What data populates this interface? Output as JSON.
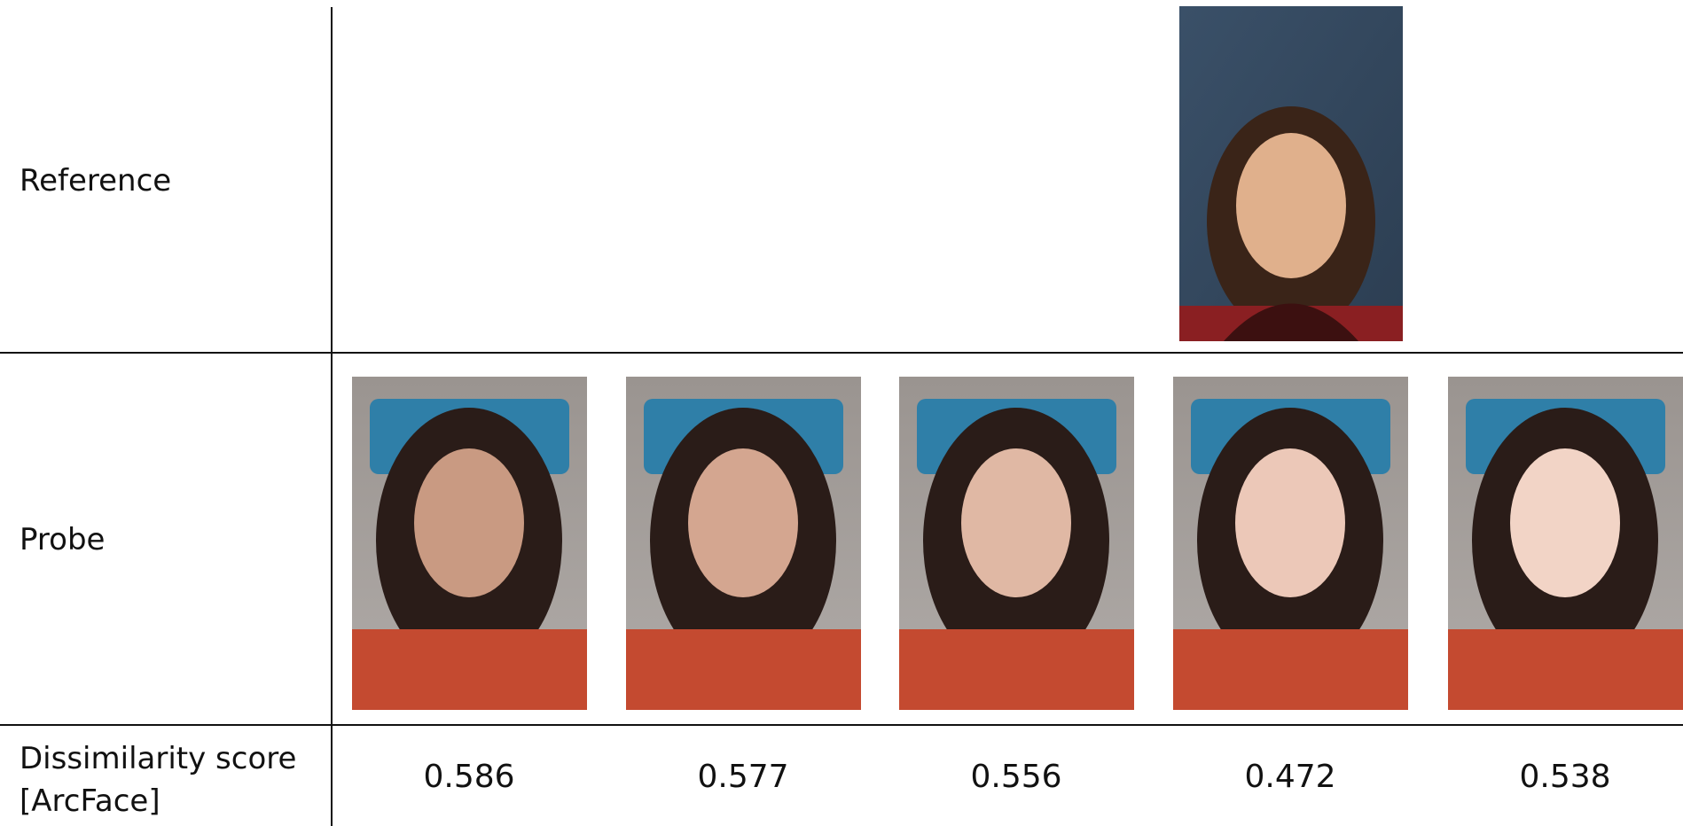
{
  "table": {
    "row_labels": [
      "Reference",
      "Probe",
      "Dissimilarity score [ArcFace]"
    ],
    "scores": [
      "0.586",
      "0.577",
      "0.556",
      "0.472",
      "0.538"
    ]
  }
}
